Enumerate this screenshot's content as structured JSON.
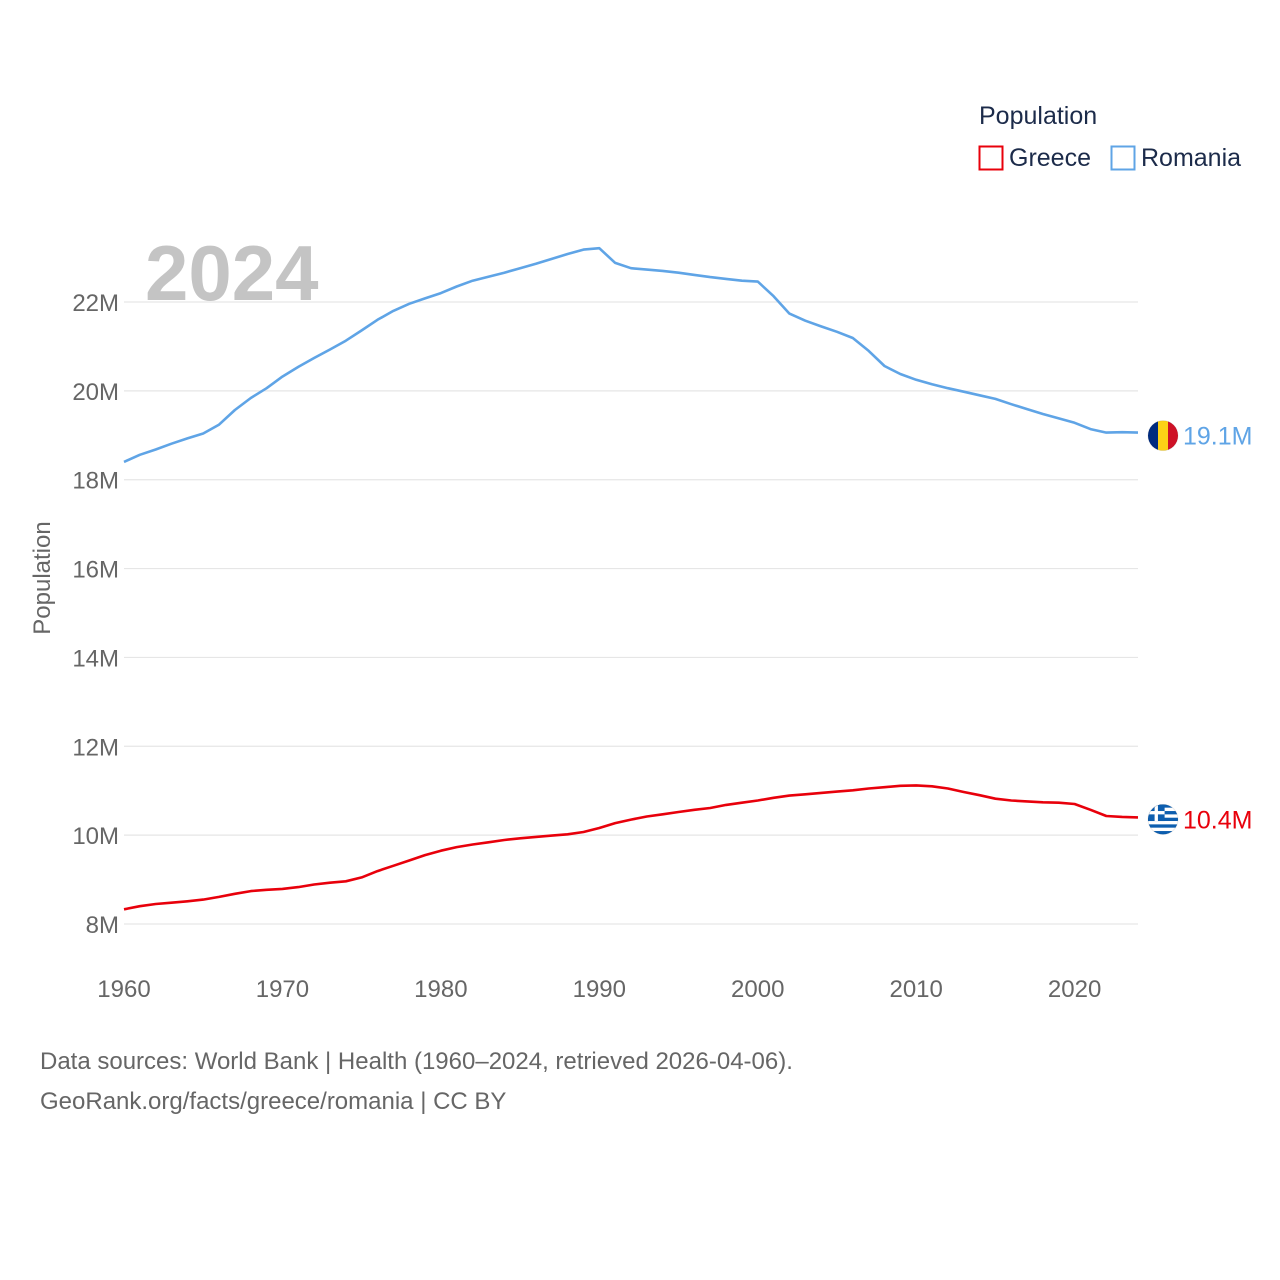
{
  "chart_data": {
    "type": "line",
    "title": "",
    "year_label": "2024",
    "xlabel": "",
    "ylabel": "Population",
    "legend_title": "Population",
    "legend_position": "top-right",
    "xlim": [
      1960,
      2024
    ],
    "ylim": [
      7000000,
      23800000
    ],
    "x_ticks": [
      1960,
      1970,
      1980,
      1990,
      2000,
      2010,
      2020
    ],
    "x_tick_labels": [
      "1960",
      "1970",
      "1980",
      "1990",
      "2000",
      "2010",
      "2020"
    ],
    "y_ticks": [
      8000000,
      10000000,
      12000000,
      14000000,
      16000000,
      18000000,
      20000000,
      22000000
    ],
    "y_tick_labels": [
      "8M",
      "10M",
      "12M",
      "14M",
      "16M",
      "18M",
      "20M",
      "22M"
    ],
    "grid": true,
    "x": [
      1960,
      1961,
      1962,
      1963,
      1964,
      1965,
      1966,
      1967,
      1968,
      1969,
      1970,
      1971,
      1972,
      1973,
      1974,
      1975,
      1976,
      1977,
      1978,
      1979,
      1980,
      1981,
      1982,
      1983,
      1984,
      1985,
      1986,
      1987,
      1988,
      1989,
      1990,
      1991,
      1992,
      1993,
      1994,
      1995,
      1996,
      1997,
      1998,
      1999,
      2000,
      2001,
      2002,
      2003,
      2004,
      2005,
      2006,
      2007,
      2008,
      2009,
      2010,
      2011,
      2012,
      2013,
      2014,
      2015,
      2016,
      2017,
      2018,
      2019,
      2020,
      2021,
      2022,
      2023,
      2024
    ],
    "series": [
      {
        "name": "Greece",
        "color": "#e8000b",
        "end_label": "10.4M",
        "flag": "greece-flag",
        "values": [
          8330000,
          8400000,
          8450000,
          8480000,
          8510000,
          8550000,
          8610000,
          8680000,
          8740000,
          8770000,
          8790000,
          8830000,
          8890000,
          8930000,
          8960000,
          9050000,
          9190000,
          9310000,
          9430000,
          9550000,
          9650000,
          9730000,
          9790000,
          9840000,
          9890000,
          9930000,
          9960000,
          9990000,
          10020000,
          10070000,
          10160000,
          10270000,
          10350000,
          10420000,
          10470000,
          10520000,
          10570000,
          10610000,
          10680000,
          10730000,
          10780000,
          10840000,
          10890000,
          10920000,
          10950000,
          10980000,
          11010000,
          11050000,
          11080000,
          11110000,
          11120000,
          11100000,
          11050000,
          10970000,
          10900000,
          10820000,
          10780000,
          10760000,
          10740000,
          10730000,
          10700000,
          10570000,
          10430000,
          10410000,
          10400000
        ]
      },
      {
        "name": "Romania",
        "color": "#5fa4e6",
        "end_label": "19.1M",
        "flag": "romania-flag",
        "values": [
          18400000,
          18560000,
          18680000,
          18810000,
          18930000,
          19040000,
          19240000,
          19570000,
          19840000,
          20060000,
          20320000,
          20540000,
          20740000,
          20930000,
          21130000,
          21360000,
          21600000,
          21800000,
          21960000,
          22080000,
          22200000,
          22350000,
          22480000,
          22570000,
          22660000,
          22760000,
          22860000,
          22970000,
          23080000,
          23180000,
          23210000,
          22880000,
          22760000,
          22730000,
          22700000,
          22660000,
          22610000,
          22560000,
          22520000,
          22480000,
          22460000,
          22130000,
          21740000,
          21580000,
          21450000,
          21330000,
          21190000,
          20900000,
          20560000,
          20380000,
          20250000,
          20150000,
          20060000,
          19980000,
          19900000,
          19820000,
          19700000,
          19590000,
          19480000,
          19380000,
          19280000,
          19140000,
          19060000,
          19070000,
          19060000
        ]
      }
    ]
  },
  "footer": {
    "line1": "Data sources: World Bank | Health (1960–2024, retrieved 2026-04-06).",
    "line2": "GeoRank.org/facts/greece/romania | CC BY"
  }
}
